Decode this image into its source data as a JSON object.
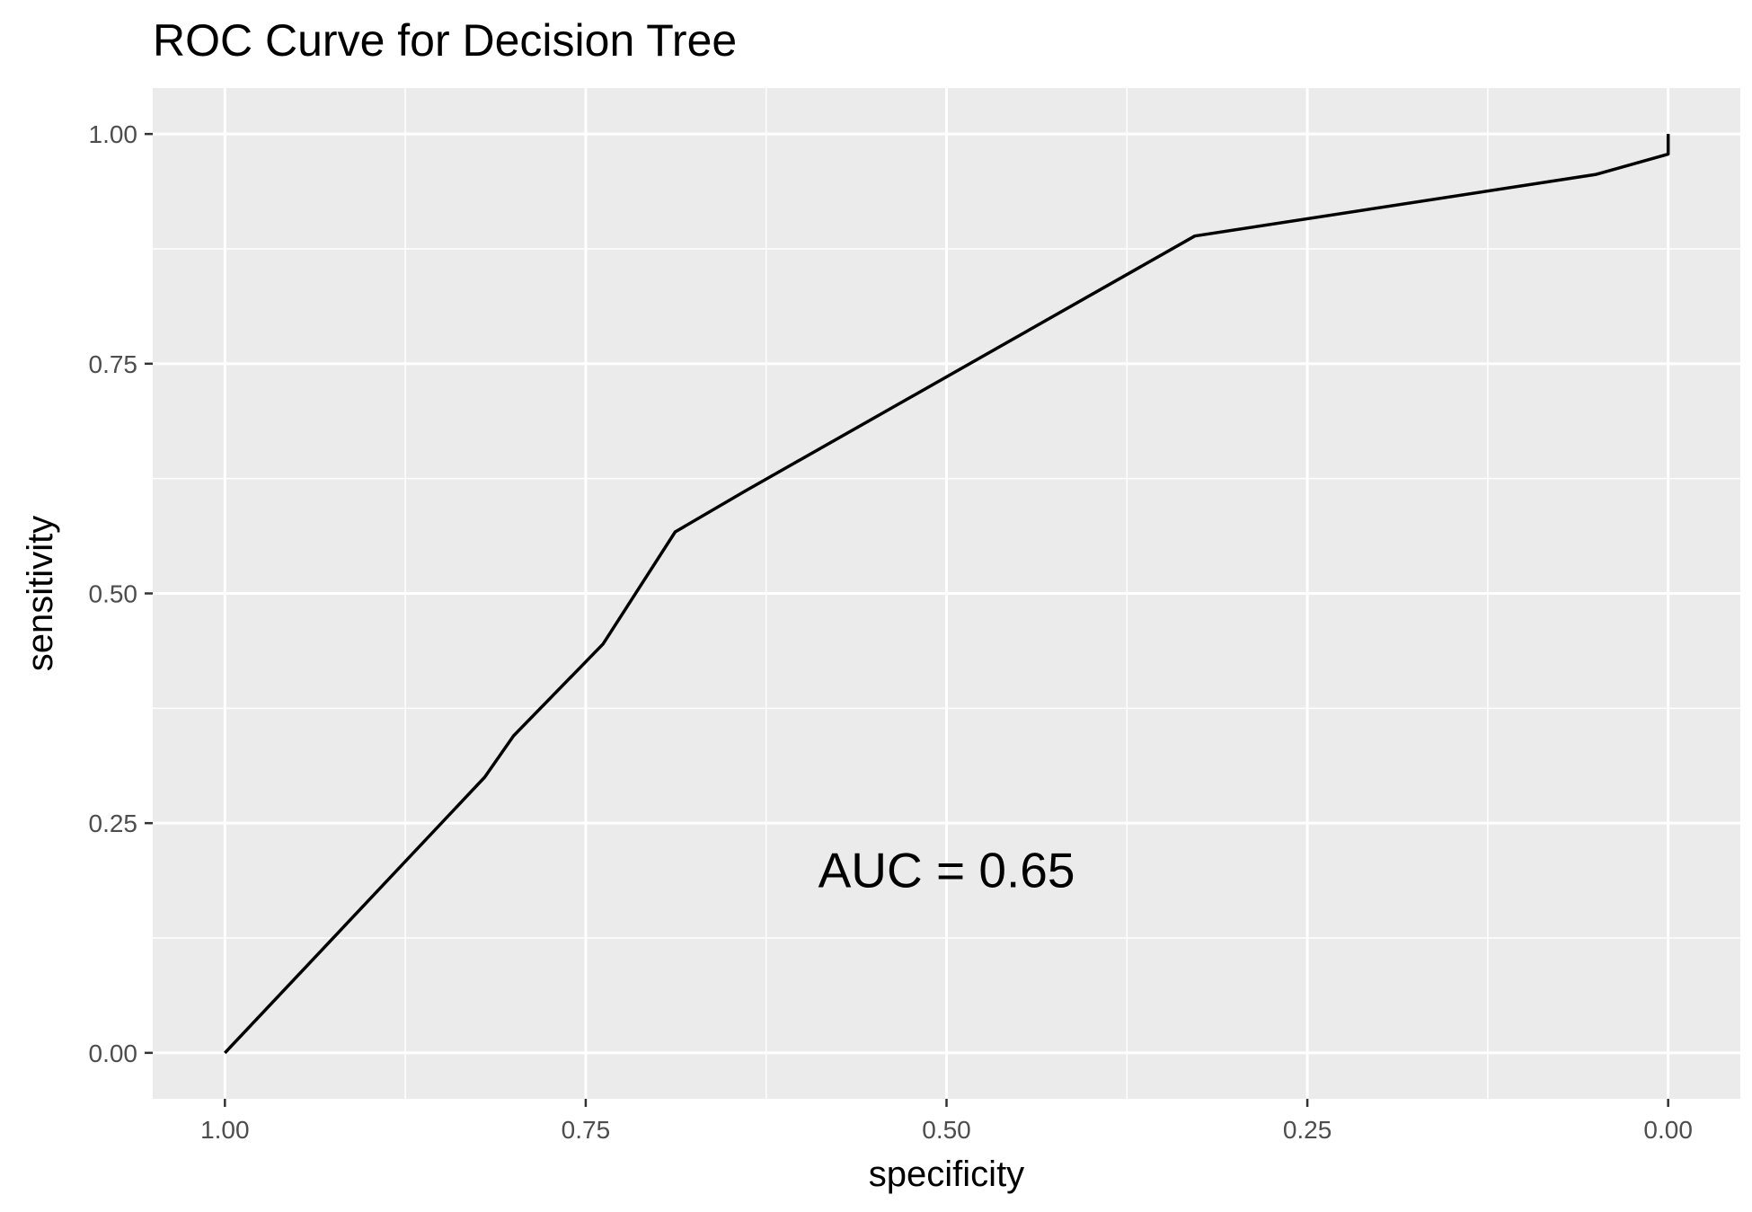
{
  "chart_data": {
    "type": "line",
    "title": "ROC Curve for Decision Tree",
    "xlabel": "specificity",
    "ylabel": "sensitivity",
    "x_reversed": true,
    "xlim": [
      1.05,
      -0.05
    ],
    "ylim": [
      -0.05,
      1.05
    ],
    "x_ticks": [
      1.0,
      0.75,
      0.5,
      0.25,
      0.0
    ],
    "x_tick_labels": [
      "1.00",
      "0.75",
      "0.50",
      "0.25",
      "0.00"
    ],
    "y_ticks": [
      0.0,
      0.25,
      0.5,
      0.75,
      1.0
    ],
    "y_tick_labels": [
      "0.00",
      "0.25",
      "0.50",
      "0.75",
      "1.00"
    ],
    "grid": true,
    "series": [
      {
        "x": [
          1.0,
          0.82,
          0.8,
          0.738,
          0.688,
          0.64,
          0.328,
          0.05,
          0.0,
          0.0
        ],
        "y": [
          0.0,
          0.3,
          0.345,
          0.445,
          0.567,
          0.611,
          0.889,
          0.956,
          0.978,
          1.0
        ],
        "color": "#000000"
      }
    ],
    "annotations": [
      {
        "text": "AUC = 0.65",
        "x": 0.5,
        "y": 0.2
      }
    ],
    "background": "#ebebeb",
    "grid_color": "#ffffff"
  }
}
